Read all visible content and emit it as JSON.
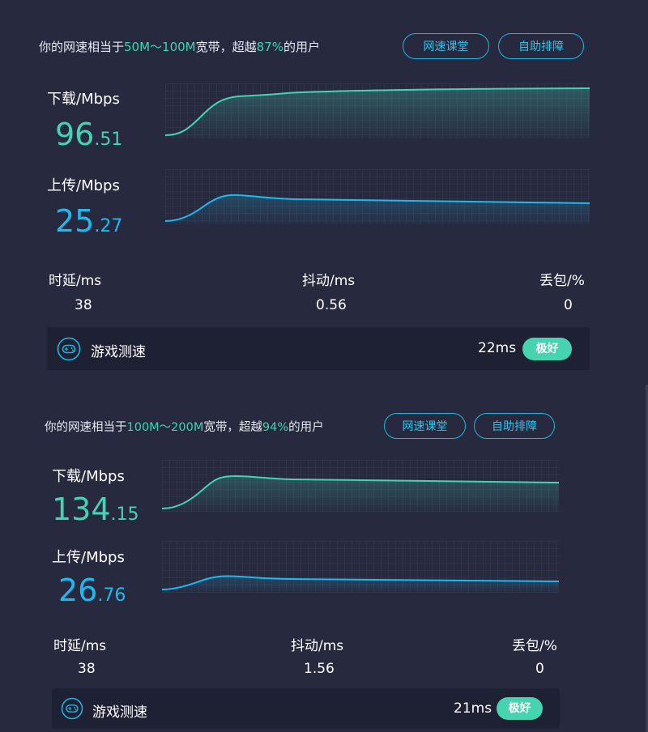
{
  "colors": {
    "background": "#272a3f",
    "download": "#44d4b4",
    "upload": "#1cbaf0",
    "highlight": "#3fd4b0",
    "button_border": "#22b5e0",
    "badge": "#46d3b0",
    "panel": "#1e2133"
  },
  "results": [
    {
      "headline": {
        "prefix": "你的网速相当于",
        "range": "50M～100M",
        "mid": "宽带，超越",
        "percent": "87%",
        "suffix": "的用户"
      },
      "buttons": {
        "course": "网速课堂",
        "troubleshoot": "自助排障"
      },
      "download": {
        "label": "下载/Mbps",
        "int": "96",
        "dec": ".51"
      },
      "upload": {
        "label": "上传/Mbps",
        "int": "25",
        "dec": ".27"
      },
      "metrics": {
        "latency": {
          "label": "时延/ms",
          "value": "38"
        },
        "jitter": {
          "label": "抖动/ms",
          "value": "0.56"
        },
        "loss": {
          "label": "丢包/%",
          "value": "0"
        }
      },
      "game": {
        "icon": "gamepad-icon",
        "title": "游戏测速",
        "latency": "22ms",
        "rating": "极好"
      }
    },
    {
      "headline": {
        "prefix": "你的网速相当于",
        "range": "100M～200M",
        "mid": "宽带，超越",
        "percent": "94%",
        "suffix": "的用户"
      },
      "buttons": {
        "course": "网速课堂",
        "troubleshoot": "自助排障"
      },
      "download": {
        "label": "下载/Mbps",
        "int": "134",
        "dec": ".15"
      },
      "upload": {
        "label": "上传/Mbps",
        "int": "26",
        "dec": ".76"
      },
      "metrics": {
        "latency": {
          "label": "时延/ms",
          "value": "38"
        },
        "jitter": {
          "label": "抖动/ms",
          "value": "1.56"
        },
        "loss": {
          "label": "丢包/%",
          "value": "0"
        }
      },
      "game": {
        "icon": "gamepad-icon",
        "title": "游戏测速",
        "latency": "21ms",
        "rating": "极好"
      }
    }
  ]
}
